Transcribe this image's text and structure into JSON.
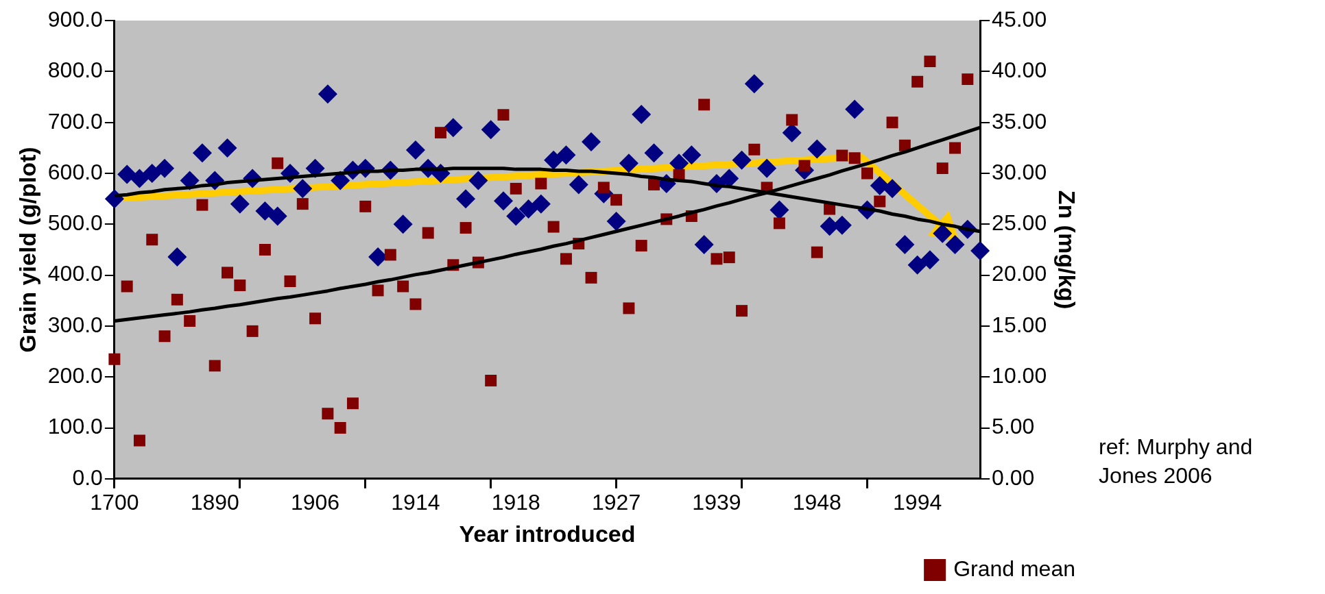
{
  "chart_data": {
    "type": "scatter",
    "xlabel": "Year introduced",
    "ylabel": "Grain yield (g/plot)",
    "y2label": "Zn (mg/kg)",
    "categories": [
      "1700",
      null,
      null,
      null,
      null,
      null,
      null,
      null,
      "1890",
      null,
      null,
      null,
      null,
      null,
      null,
      null,
      "1906",
      null,
      null,
      null,
      null,
      null,
      null,
      null,
      "1914",
      null,
      null,
      null,
      null,
      null,
      null,
      null,
      "1918",
      null,
      null,
      null,
      null,
      null,
      null,
      null,
      "1927",
      null,
      null,
      null,
      null,
      null,
      null,
      null,
      "1939",
      null,
      null,
      null,
      null,
      null,
      null,
      null,
      "1948",
      null,
      null,
      null,
      null,
      null,
      null,
      null,
      "1994",
      null,
      null,
      null,
      null,
      null
    ],
    "series": [
      {
        "name": "Grand mean",
        "color": "#800000",
        "marker": "square",
        "values": [
          235,
          378,
          75,
          470,
          280,
          352,
          310,
          538,
          222,
          405,
          380,
          290,
          450,
          620,
          388,
          540,
          315,
          128,
          100,
          148,
          535,
          370,
          440,
          378,
          343,
          483,
          680,
          420,
          493,
          425,
          193,
          715,
          570,
          null,
          580,
          495,
          432,
          462,
          395,
          572,
          548,
          335,
          458,
          578,
          510,
          597,
          516,
          735,
          432,
          435,
          330,
          647,
          572,
          502,
          705,
          615,
          445,
          530,
          635,
          630,
          600,
          545,
          700,
          655,
          780,
          820,
          610,
          650,
          785,
          null
        ]
      },
      {
        "color": "#000080",
        "marker": "diamond",
        "axis": "y2",
        "values": [
          27.5,
          29.9,
          29.5,
          30.0,
          30.5,
          21.8,
          29.3,
          32.0,
          29.3,
          32.5,
          27.0,
          29.5,
          26.3,
          25.8,
          30.0,
          28.5,
          30.5,
          37.8,
          29.3,
          30.3,
          30.5,
          21.8,
          30.3,
          25.0,
          32.3,
          30.5,
          30.0,
          34.5,
          27.5,
          29.3,
          34.3,
          27.3,
          25.8,
          26.5,
          27.0,
          31.3,
          31.8,
          28.9,
          33.1,
          28.0,
          25.3,
          31.0,
          35.8,
          32.0,
          29.0,
          31.0,
          31.8,
          23.0,
          29.0,
          29.5,
          31.3,
          38.8,
          30.5,
          26.4,
          34.0,
          30.3,
          32.4,
          24.8,
          24.9,
          36.3,
          26.4,
          28.8,
          28.5,
          23.0,
          21.0,
          21.5,
          24.1,
          23.0,
          24.5,
          22.4
        ]
      },
      {
        "type": "line",
        "color": "#000000",
        "marker": "none",
        "values": [
          310,
          313,
          316,
          319,
          322,
          325,
          328,
          332,
          335,
          339,
          342,
          346,
          350,
          354,
          357,
          361,
          365,
          369,
          374,
          378,
          382,
          387,
          391,
          396,
          401,
          405,
          410,
          415,
          420,
          425,
          430,
          435,
          441,
          446,
          451,
          457,
          462,
          468,
          474,
          480,
          486,
          492,
          498,
          504,
          510,
          516,
          523,
          529,
          536,
          542,
          549,
          556,
          562,
          569,
          576,
          583,
          590,
          597,
          605,
          612,
          619,
          627,
          635,
          642,
          650,
          658,
          666,
          674,
          682,
          690
        ]
      },
      {
        "type": "line",
        "color": "#000000",
        "marker": "none",
        "axis": "y2",
        "values": [
          27.8,
          27.9,
          28.1,
          28.2,
          28.4,
          28.5,
          28.6,
          28.8,
          28.9,
          29.1,
          29.2,
          29.3,
          29.4,
          29.5,
          29.6,
          29.7,
          29.8,
          29.9,
          30.0,
          30.1,
          30.2,
          30.2,
          30.3,
          30.3,
          30.4,
          30.4,
          30.4,
          30.5,
          30.5,
          30.5,
          30.5,
          30.5,
          30.4,
          30.4,
          30.4,
          30.3,
          30.3,
          30.2,
          30.2,
          30.1,
          30.0,
          29.9,
          29.7,
          29.6,
          29.4,
          29.3,
          29.2,
          29.0,
          28.8,
          28.7,
          28.5,
          28.3,
          28.1,
          27.9,
          27.7,
          27.5,
          27.3,
          27.1,
          26.9,
          26.7,
          26.5,
          26.3,
          26.0,
          25.8,
          25.5,
          25.3,
          25.0,
          24.8,
          24.5,
          24.3
        ]
      }
    ],
    "ylim": [
      0,
      900
    ],
    "yticks": [
      {
        "value": 0,
        "label": "0.0"
      },
      {
        "value": 100,
        "label": "100.0"
      },
      {
        "value": 200,
        "label": "200.0"
      },
      {
        "value": 300,
        "label": "300.0"
      },
      {
        "value": 400,
        "label": "400.0"
      },
      {
        "value": 500,
        "label": "500.0"
      },
      {
        "value": 600,
        "label": "600.0"
      },
      {
        "value": 700,
        "label": "700.0"
      },
      {
        "value": 800,
        "label": "800.0"
      },
      {
        "value": 900,
        "label": "900.0"
      }
    ],
    "y2lim": [
      0,
      45
    ],
    "y2ticks": [
      {
        "value": 0,
        "label": "0.00"
      },
      {
        "value": 5,
        "label": "5.00"
      },
      {
        "value": 10,
        "label": "10.00"
      },
      {
        "value": 15,
        "label": "15.00"
      },
      {
        "value": 20,
        "label": "20.00"
      },
      {
        "value": 25,
        "label": "25.00"
      },
      {
        "value": 30,
        "label": "30.00"
      },
      {
        "value": 35,
        "label": "35.00"
      },
      {
        "value": 40,
        "label": "40.00"
      },
      {
        "value": 45,
        "label": "45.00"
      }
    ],
    "grid": false,
    "legend": "bottom right",
    "annotations": [
      "ref: Murphy and Jones 2006"
    ]
  }
}
